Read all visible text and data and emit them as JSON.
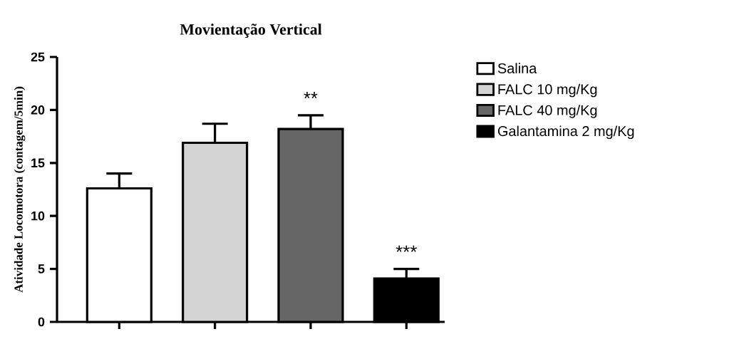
{
  "chart_data": {
    "type": "bar",
    "title": "Movientação Vertical",
    "ylabel": "Atividade Locomotora (contagem/5min)",
    "categories": [
      null,
      null,
      null,
      null
    ],
    "series": [
      {
        "name": "Salina",
        "color": "#ffffff",
        "values": [
          12.6,
          null,
          null,
          null
        ],
        "errors": [
          1.4,
          null,
          null,
          null
        ]
      },
      {
        "name": "FALC 10 mg/Kg",
        "color": "#d4d4d4",
        "values": [
          null,
          16.9,
          null,
          null
        ],
        "errors": [
          null,
          1.8,
          null,
          null
        ]
      },
      {
        "name": "FALC 40 mg/Kg",
        "color": "#666666",
        "values": [
          null,
          null,
          18.2,
          null
        ],
        "errors": [
          null,
          null,
          1.3,
          null
        ]
      },
      {
        "name": "Galantamina 2 mg/Kg",
        "color": "#000000",
        "values": [
          null,
          null,
          null,
          4.1
        ],
        "errors": [
          null,
          null,
          null,
          0.9
        ]
      }
    ],
    "annotations": [
      "**",
      "***"
    ],
    "ylim": [
      0,
      25
    ],
    "yticks": [
      0,
      5,
      10,
      15,
      20,
      25
    ],
    "tick_labels": "y",
    "legend": "right"
  }
}
